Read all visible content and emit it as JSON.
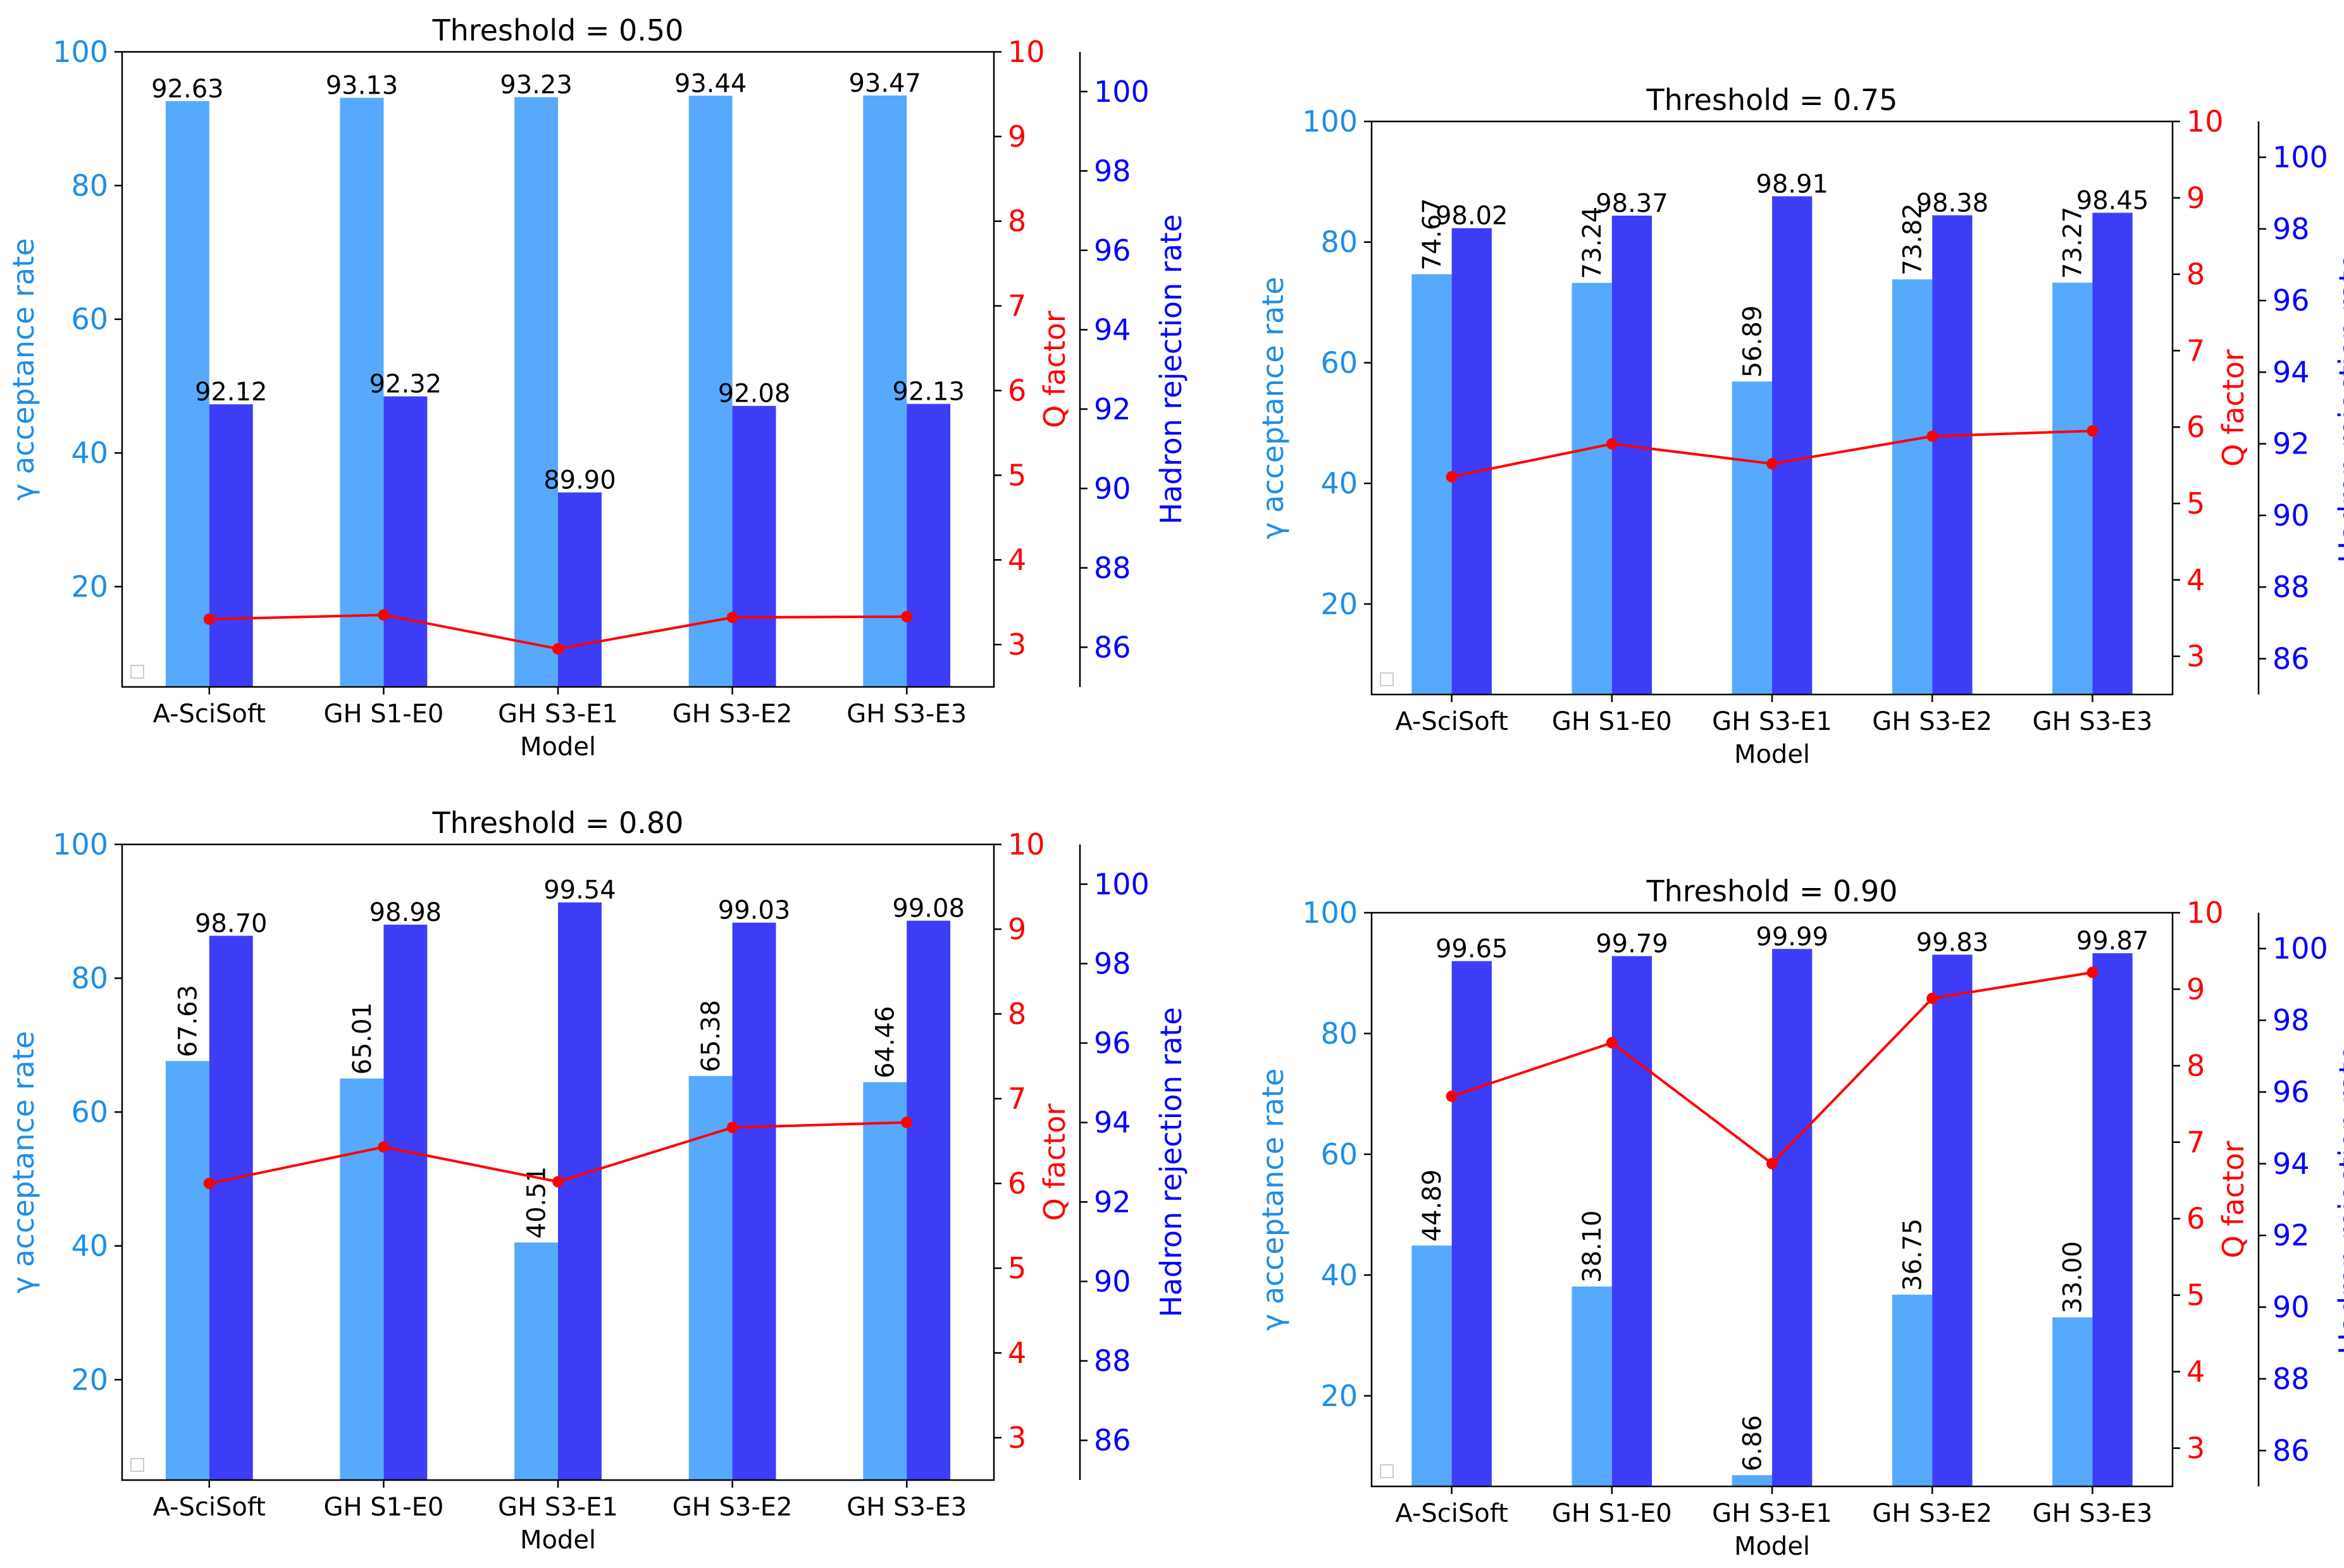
{
  "colors": {
    "acceptance": "#56a9fd",
    "rejection": "#3d3df8",
    "q_line": "#ff0000",
    "acceptance_axis": "#1e8ee6",
    "q_axis": "#ff0000",
    "rejection_axis": "#0000ff"
  },
  "chart_data": [
    {
      "type": "bar",
      "title": "Threshold = 0.50",
      "xlabel": "Model",
      "ylabel_left": "γ acceptance rate",
      "ylabel_q": "Q factor",
      "ylabel_right": "Hadron rejection rate",
      "categories": [
        "A-SciSoft",
        "GH S1-E0",
        "GH S3-E1",
        "GH S3-E2",
        "GH S3-E3"
      ],
      "acceptance": {
        "values": [
          92.63,
          93.13,
          93.23,
          93.44,
          93.47
        ],
        "labels": [
          "92.63",
          "93.13",
          "93.23",
          "93.44",
          "93.47"
        ],
        "label_rotation": 0
      },
      "rejection": {
        "values": [
          92.12,
          92.32,
          89.9,
          92.08,
          92.13
        ],
        "labels": [
          "92.12",
          "92.32",
          "89.90",
          "92.08",
          "92.13"
        ]
      },
      "q_factor": [
        3.3,
        3.35,
        2.95,
        3.32,
        3.33
      ],
      "ylim_left": [
        5,
        100
      ],
      "yticks_left": [
        "20",
        "40",
        "60",
        "80",
        "100"
      ],
      "ylim_q": [
        2.5,
        10
      ],
      "yticks_q": [
        "3",
        "4",
        "5",
        "6",
        "7",
        "8",
        "9",
        "10"
      ],
      "ylim_right": [
        85,
        101
      ],
      "yticks_right": [
        "86",
        "88",
        "90",
        "92",
        "94",
        "96",
        "98",
        "100"
      ]
    },
    {
      "type": "bar",
      "title": "Threshold = 0.75",
      "xlabel": "Model",
      "ylabel_left": "γ acceptance rate",
      "ylabel_q": "Q factor",
      "ylabel_right": "Hadron rejection rate",
      "categories": [
        "A-SciSoft",
        "GH S1-E0",
        "GH S3-E1",
        "GH S3-E2",
        "GH S3-E3"
      ],
      "acceptance": {
        "values": [
          74.67,
          73.24,
          56.89,
          73.82,
          73.27
        ],
        "labels": [
          "74.67",
          "73.24",
          "56.89",
          "73.82",
          "73.27"
        ],
        "label_rotation": -90
      },
      "rejection": {
        "values": [
          98.02,
          98.37,
          98.91,
          98.38,
          98.45
        ],
        "labels": [
          "98.02",
          "98.37",
          "98.91",
          "98.38",
          "98.45"
        ]
      },
      "q_factor": [
        5.35,
        5.78,
        5.52,
        5.88,
        5.95
      ],
      "ylim_left": [
        5,
        100
      ],
      "yticks_left": [
        "20",
        "40",
        "60",
        "80",
        "100"
      ],
      "ylim_q": [
        2.5,
        10
      ],
      "yticks_q": [
        "3",
        "4",
        "5",
        "6",
        "7",
        "8",
        "9",
        "10"
      ],
      "ylim_right": [
        85,
        101
      ],
      "yticks_right": [
        "86",
        "88",
        "90",
        "92",
        "94",
        "96",
        "98",
        "100"
      ]
    },
    {
      "type": "bar",
      "title": "Threshold = 0.80",
      "xlabel": "Model",
      "ylabel_left": "γ acceptance rate",
      "ylabel_q": "Q factor",
      "ylabel_right": "Hadron rejection rate",
      "categories": [
        "A-SciSoft",
        "GH S1-E0",
        "GH S3-E1",
        "GH S3-E2",
        "GH S3-E3"
      ],
      "acceptance": {
        "values": [
          67.63,
          65.01,
          40.51,
          65.38,
          64.46
        ],
        "labels": [
          "67.63",
          "65.01",
          "40.51",
          "65.38",
          "64.46"
        ],
        "label_rotation": -90
      },
      "rejection": {
        "values": [
          98.7,
          98.98,
          99.54,
          99.03,
          99.08
        ],
        "labels": [
          "98.70",
          "98.98",
          "99.54",
          "99.03",
          "99.08"
        ]
      },
      "q_factor": [
        6.0,
        6.43,
        6.02,
        6.66,
        6.72
      ],
      "ylim_left": [
        5,
        100
      ],
      "yticks_left": [
        "20",
        "40",
        "60",
        "80",
        "100"
      ],
      "ylim_q": [
        2.5,
        10
      ],
      "yticks_q": [
        "3",
        "4",
        "5",
        "6",
        "7",
        "8",
        "9",
        "10"
      ],
      "ylim_right": [
        85,
        101
      ],
      "yticks_right": [
        "86",
        "88",
        "90",
        "92",
        "94",
        "96",
        "98",
        "100"
      ]
    },
    {
      "type": "bar",
      "title": "Threshold = 0.90",
      "xlabel": "Model",
      "ylabel_left": "γ acceptance rate",
      "ylabel_q": "Q factor",
      "ylabel_right": "Hadron rejection rate",
      "categories": [
        "A-SciSoft",
        "GH S1-E0",
        "GH S3-E1",
        "GH S3-E2",
        "GH S3-E3"
      ],
      "acceptance": {
        "values": [
          44.89,
          38.1,
          6.86,
          36.75,
          33.0
        ],
        "labels": [
          "44.89",
          "38.10",
          "6.86",
          "36.75",
          "33.00"
        ],
        "label_rotation": -90
      },
      "rejection": {
        "values": [
          99.65,
          99.79,
          99.99,
          99.83,
          99.87
        ],
        "labels": [
          "99.65",
          "99.79",
          "99.99",
          "99.83",
          "99.87"
        ]
      },
      "q_factor": [
        7.6,
        8.3,
        6.72,
        8.88,
        9.22
      ],
      "ylim_left": [
        5,
        100
      ],
      "yticks_left": [
        "20",
        "40",
        "60",
        "80",
        "100"
      ],
      "ylim_q": [
        2.5,
        10
      ],
      "yticks_q": [
        "3",
        "4",
        "5",
        "6",
        "7",
        "8",
        "9",
        "10"
      ],
      "ylim_right": [
        85,
        101
      ],
      "yticks_right": [
        "86",
        "88",
        "90",
        "92",
        "94",
        "96",
        "98",
        "100"
      ]
    }
  ]
}
